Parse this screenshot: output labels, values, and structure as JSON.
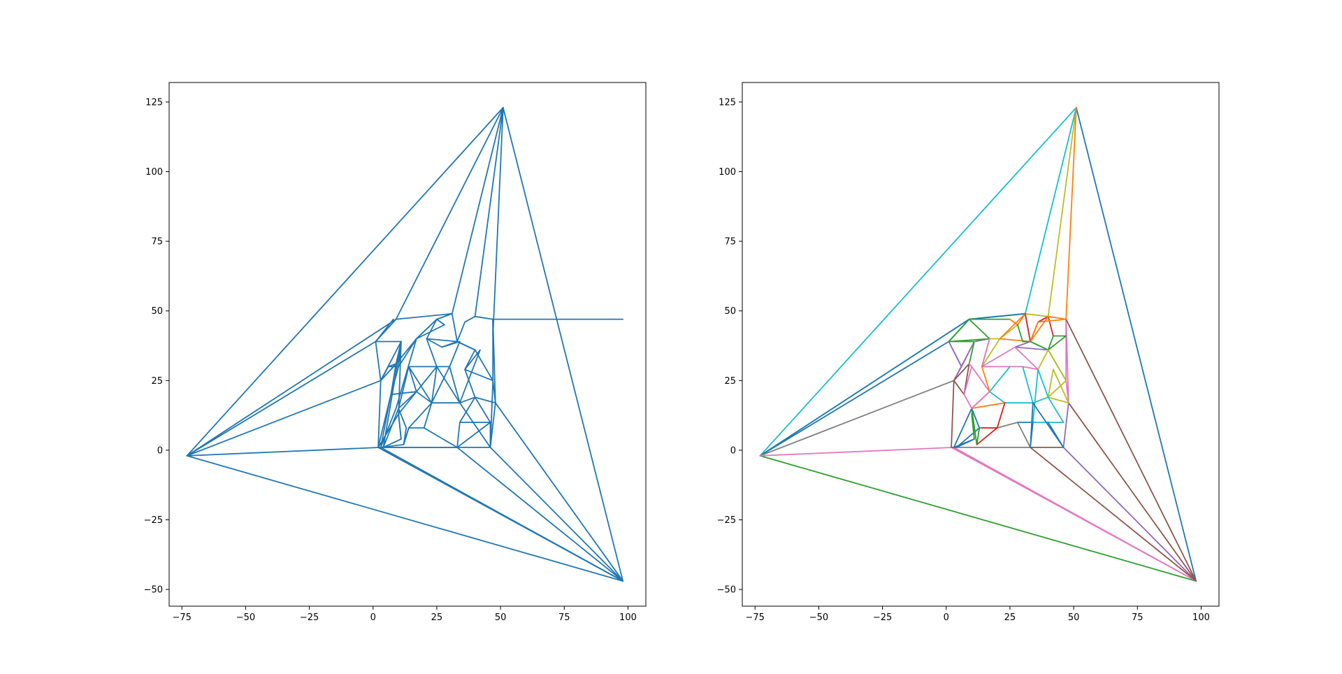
{
  "chart_data": [
    {
      "type": "line",
      "title": "",
      "xlabel": "",
      "ylabel": "",
      "xlim": [
        -80,
        107
      ],
      "ylim": [
        -56,
        132
      ],
      "x_ticks": [
        -75,
        -50,
        -25,
        0,
        25,
        50,
        75,
        100
      ],
      "y_ticks": [
        -50,
        -25,
        0,
        25,
        50,
        75,
        100,
        125
      ],
      "x_tick_labels": [
        "−75",
        "−50",
        "−25",
        "0",
        "25",
        "50",
        "75",
        "100"
      ],
      "y_tick_labels": [
        "−50",
        "−25",
        "0",
        "25",
        "50",
        "75",
        "100",
        "125"
      ],
      "grid": false,
      "colors": [
        "#1f77b4"
      ],
      "series": [
        {
          "color": "#1f77b4",
          "x": [
            -73,
            51,
            98,
            -73
          ],
          "y": [
            -2,
            123,
            -47,
            -2
          ]
        },
        {
          "color": "#1f77b4",
          "x": [
            -73,
            9,
            51
          ],
          "y": [
            -2,
            47,
            123
          ]
        },
        {
          "color": "#1f77b4",
          "x": [
            -73,
            1,
            8
          ],
          "y": [
            -2,
            39,
            47
          ]
        },
        {
          "color": "#1f77b4",
          "x": [
            -73,
            3,
            6
          ],
          "y": [
            -2,
            25,
            30
          ]
        },
        {
          "color": "#1f77b4",
          "x": [
            -73,
            3,
            33
          ],
          "y": [
            -2,
            1,
            1
          ]
        },
        {
          "color": "#1f77b4",
          "x": [
            9,
            31,
            51,
            40
          ],
          "y": [
            47,
            49,
            123,
            48
          ]
        },
        {
          "color": "#1f77b4",
          "x": [
            51,
            47,
            47,
            98
          ],
          "y": [
            123,
            41,
            47,
            47
          ]
        },
        {
          "color": "#1f77b4",
          "x": [
            47,
            48,
            98
          ],
          "y": [
            47,
            17,
            -47
          ]
        },
        {
          "color": "#1f77b4",
          "x": [
            98,
            46,
            48
          ],
          "y": [
            -47,
            1,
            17
          ]
        },
        {
          "color": "#1f77b4",
          "x": [
            98,
            33,
            46
          ],
          "y": [
            -47,
            1,
            1
          ]
        },
        {
          "color": "#1f77b4",
          "x": [
            98,
            3,
            33
          ],
          "y": [
            -47,
            1,
            1
          ]
        },
        {
          "color": "#1f77b4",
          "x": [
            98,
            2,
            3
          ],
          "y": [
            -47,
            1,
            1
          ]
        },
        {
          "color": "#1f77b4",
          "x": [
            9,
            1,
            3,
            2,
            3,
            9,
            17,
            25,
            31
          ],
          "y": [
            47,
            39,
            25,
            1,
            1,
            15,
            40,
            47,
            49
          ]
        },
        {
          "color": "#1f77b4",
          "x": [
            1,
            11,
            9,
            17,
            25,
            21,
            33,
            36,
            40,
            47,
            47,
            47,
            48
          ],
          "y": [
            39,
            39,
            31,
            40,
            47,
            40,
            39,
            46,
            48,
            47,
            41,
            25,
            17
          ]
        },
        {
          "color": "#1f77b4",
          "x": [
            3,
            9,
            7,
            10,
            17,
            28,
            25,
            31,
            33,
            40,
            47,
            46
          ],
          "y": [
            25,
            31,
            20,
            30,
            40,
            45,
            47,
            49,
            39,
            36,
            25,
            1
          ]
        },
        {
          "color": "#1f77b4",
          "x": [
            7,
            2,
            10,
            17,
            14,
            25,
            21,
            27,
            33,
            40,
            36,
            47
          ],
          "y": [
            20,
            1,
            13,
            21,
            30,
            30,
            40,
            37,
            39,
            36,
            29,
            25
          ]
        },
        {
          "color": "#1f77b4",
          "x": [
            10,
            11,
            4,
            10,
            13,
            12,
            14,
            23,
            17,
            25,
            30,
            34,
            27
          ],
          "y": [
            13,
            4,
            1,
            15,
            8,
            2,
            8,
            17,
            21,
            30,
            30,
            39,
            37
          ]
        },
        {
          "color": "#1f77b4",
          "x": [
            33,
            46,
            40,
            36,
            42,
            34,
            30,
            23,
            20,
            14,
            12,
            3
          ],
          "y": [
            1,
            10,
            19,
            29,
            36,
            17,
            30,
            17,
            8,
            8,
            2,
            1
          ]
        },
        {
          "color": "#1f77b4",
          "x": [
            20,
            33,
            34,
            40,
            48,
            40,
            34,
            25,
            23
          ],
          "y": [
            8,
            1,
            10,
            19,
            17,
            19,
            17,
            30,
            17
          ]
        },
        {
          "color": "#1f77b4",
          "x": [
            34,
            46,
            46,
            34,
            23,
            14,
            10,
            17,
            7,
            3
          ],
          "y": [
            10,
            10,
            1,
            17,
            17,
            30,
            15,
            21,
            20,
            1
          ]
        },
        {
          "color": "#1f77b4",
          "x": [
            11,
            10,
            11,
            3,
            9,
            6,
            10,
            11,
            4
          ],
          "y": [
            4,
            13,
            39,
            25,
            31,
            30,
            30,
            39,
            1
          ]
        }
      ]
    },
    {
      "type": "line",
      "title": "",
      "xlabel": "",
      "ylabel": "",
      "xlim": [
        -80,
        107
      ],
      "ylim": [
        -56,
        132
      ],
      "x_ticks": [
        -75,
        -50,
        -25,
        0,
        25,
        50,
        75,
        100
      ],
      "y_ticks": [
        -50,
        -25,
        0,
        25,
        50,
        75,
        100,
        125
      ],
      "x_tick_labels": [
        "−75",
        "−50",
        "−25",
        "0",
        "25",
        "50",
        "75",
        "100"
      ],
      "y_tick_labels": [
        "−50",
        "−25",
        "0",
        "25",
        "50",
        "75",
        "100",
        "125"
      ],
      "grid": false,
      "colors": [
        "#1f77b4",
        "#ff7f0e",
        "#2ca02c",
        "#d62728",
        "#9467bd",
        "#8c564b",
        "#e377c2",
        "#7f7f7f",
        "#bcbd22",
        "#17becf"
      ],
      "series": [
        {
          "color": "#17becf",
          "x": [
            -73,
            9,
            31,
            51,
            -73
          ],
          "y": [
            -2,
            47,
            49,
            123,
            -2
          ]
        },
        {
          "color": "#1f77b4",
          "x": [
            51,
            98
          ],
          "y": [
            123,
            -47
          ]
        },
        {
          "color": "#2ca02c",
          "x": [
            -73,
            98
          ],
          "y": [
            -2,
            -47
          ]
        },
        {
          "color": "#1f77b4",
          "x": [
            -73,
            9,
            31
          ],
          "y": [
            -2,
            47,
            49
          ]
        },
        {
          "color": "#1f77b4",
          "x": [
            -73,
            1,
            9
          ],
          "y": [
            -2,
            39,
            47
          ]
        },
        {
          "color": "#7f7f7f",
          "x": [
            -73,
            3,
            6,
            1
          ],
          "y": [
            -2,
            25,
            30,
            39
          ]
        },
        {
          "color": "#e377c2",
          "x": [
            -73,
            3,
            98,
            2
          ],
          "y": [
            -2,
            1,
            -47,
            1
          ]
        },
        {
          "color": "#bcbd22",
          "x": [
            31,
            40,
            51,
            40,
            36
          ],
          "y": [
            49,
            48,
            123,
            48,
            46
          ]
        },
        {
          "color": "#ff7f0e",
          "x": [
            51,
            47,
            47
          ],
          "y": [
            123,
            47,
            41
          ]
        },
        {
          "color": "#e377c2",
          "x": [
            47,
            48,
            47,
            47
          ],
          "y": [
            47,
            17,
            25,
            47
          ]
        },
        {
          "color": "#8c564b",
          "x": [
            47,
            98,
            48,
            98
          ],
          "y": [
            47,
            -47,
            17,
            -47
          ]
        },
        {
          "color": "#9467bd",
          "x": [
            98,
            46,
            48
          ],
          "y": [
            -47,
            1,
            17
          ]
        },
        {
          "color": "#8c564b",
          "x": [
            98,
            33,
            46
          ],
          "y": [
            -47,
            1,
            1
          ]
        },
        {
          "color": "#2ca02c",
          "x": [
            1,
            9,
            17,
            9,
            25
          ],
          "y": [
            39,
            47,
            40,
            47,
            47
          ]
        },
        {
          "color": "#8c564b",
          "x": [
            3,
            2,
            3
          ],
          "y": [
            25,
            1,
            1
          ]
        },
        {
          "color": "#7f7f7f",
          "x": [
            3,
            33,
            28,
            20
          ],
          "y": [
            1,
            1,
            10,
            8
          ]
        },
        {
          "color": "#9467bd",
          "x": [
            1,
            6,
            11,
            3
          ],
          "y": [
            39,
            30,
            39,
            25
          ]
        },
        {
          "color": "#2ca02c",
          "x": [
            11,
            17,
            1,
            11,
            9
          ],
          "y": [
            39,
            40,
            39,
            39,
            31
          ]
        },
        {
          "color": "#8c564b",
          "x": [
            3,
            9,
            7,
            3
          ],
          "y": [
            25,
            31,
            20,
            25
          ]
        },
        {
          "color": "#e377c2",
          "x": [
            7,
            10,
            9,
            10,
            17
          ],
          "y": [
            20,
            30,
            31,
            30,
            21
          ]
        },
        {
          "color": "#7f7f7f",
          "x": [
            14,
            17,
            11
          ],
          "y": [
            30,
            40,
            39
          ]
        },
        {
          "color": "#bcbd22",
          "x": [
            17,
            21,
            14,
            21,
            28,
            25
          ],
          "y": [
            40,
            40,
            30,
            40,
            45,
            47
          ]
        },
        {
          "color": "#ff7f0e",
          "x": [
            25,
            28,
            31,
            21,
            33
          ],
          "y": [
            47,
            45,
            49,
            40,
            39
          ]
        },
        {
          "color": "#2ca02c",
          "x": [
            28,
            30,
            33,
            31
          ],
          "y": [
            45,
            39,
            39,
            49
          ]
        },
        {
          "color": "#d62728",
          "x": [
            31,
            33,
            36,
            40,
            42
          ],
          "y": [
            49,
            39,
            46,
            48,
            41
          ]
        },
        {
          "color": "#ff7f0e",
          "x": [
            36,
            47,
            40,
            33,
            36
          ],
          "y": [
            46,
            47,
            48,
            39,
            46
          ]
        },
        {
          "color": "#2ca02c",
          "x": [
            33,
            40,
            42,
            47,
            40,
            47
          ],
          "y": [
            39,
            36,
            41,
            41,
            36,
            25
          ]
        },
        {
          "color": "#9467bd",
          "x": [
            40,
            27,
            33
          ],
          "y": [
            36,
            37,
            39
          ]
        },
        {
          "color": "#e377c2",
          "x": [
            17,
            14,
            25,
            30,
            36,
            27,
            14
          ],
          "y": [
            40,
            30,
            30,
            30,
            29,
            37,
            30
          ]
        },
        {
          "color": "#bcbd22",
          "x": [
            36,
            40,
            47,
            40,
            42,
            48,
            40
          ],
          "y": [
            29,
            36,
            25,
            19,
            29,
            17,
            19
          ]
        },
        {
          "color": "#17becf",
          "x": [
            17,
            25,
            17,
            23,
            34,
            30
          ],
          "y": [
            21,
            30,
            21,
            17,
            17,
            30
          ]
        },
        {
          "color": "#ff7f0e",
          "x": [
            14,
            17,
            10,
            23,
            20,
            14
          ],
          "y": [
            30,
            21,
            15,
            17,
            8,
            8
          ]
        },
        {
          "color": "#17becf",
          "x": [
            34,
            40,
            36,
            34,
            46,
            40
          ],
          "y": [
            17,
            19,
            29,
            10,
            10,
            19
          ]
        },
        {
          "color": "#1f77b4",
          "x": [
            28,
            34,
            33,
            34,
            46,
            40
          ],
          "y": [
            10,
            10,
            1,
            17,
            1,
            10
          ]
        },
        {
          "color": "#1f77b4",
          "x": [
            3,
            10,
            13,
            4,
            11,
            3
          ],
          "y": [
            1,
            15,
            8,
            1,
            4,
            1
          ]
        },
        {
          "color": "#2ca02c",
          "x": [
            10,
            11,
            10,
            12,
            13,
            14
          ],
          "y": [
            13,
            4,
            15,
            2,
            8,
            8
          ]
        },
        {
          "color": "#d62728",
          "x": [
            12,
            20,
            14,
            20,
            23
          ],
          "y": [
            2,
            8,
            8,
            8,
            17
          ]
        },
        {
          "color": "#e377c2",
          "x": [
            7,
            10,
            17
          ],
          "y": [
            20,
            15,
            21
          ]
        }
      ]
    }
  ]
}
